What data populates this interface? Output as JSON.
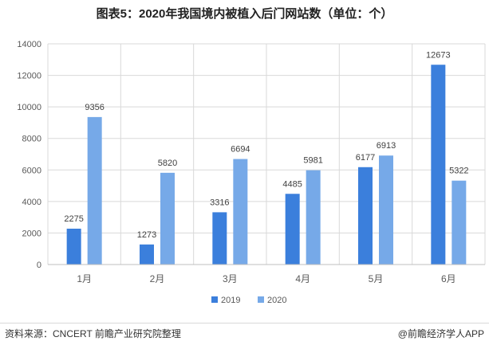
{
  "title": "图表5：2020年我国境内被植入后门网站数（单位：个）",
  "footer": {
    "source": "资料来源：CNCERT 前瞻产业研究院整理",
    "brand": "@前瞻经济学人APP"
  },
  "colors": {
    "2019": "#3b7fdc",
    "2020": "#76a9e8",
    "grid": "#d9d9d9"
  },
  "chart_data": {
    "type": "bar",
    "title": "图表5：2020年我国境内被植入后门网站数（单位：个）",
    "xlabel": "",
    "ylabel": "",
    "categories": [
      "1月",
      "2月",
      "3月",
      "4月",
      "5月",
      "6月"
    ],
    "series": [
      {
        "name": "2019",
        "values": [
          2275,
          1273,
          3316,
          4485,
          6177,
          12673
        ]
      },
      {
        "name": "2020",
        "values": [
          9356,
          5820,
          6694,
          5981,
          6913,
          5322
        ]
      }
    ],
    "ylim": [
      0,
      14000
    ],
    "yticks": [
      0,
      2000,
      4000,
      6000,
      8000,
      10000,
      12000,
      14000
    ],
    "grid": true,
    "legend": "bottom"
  }
}
